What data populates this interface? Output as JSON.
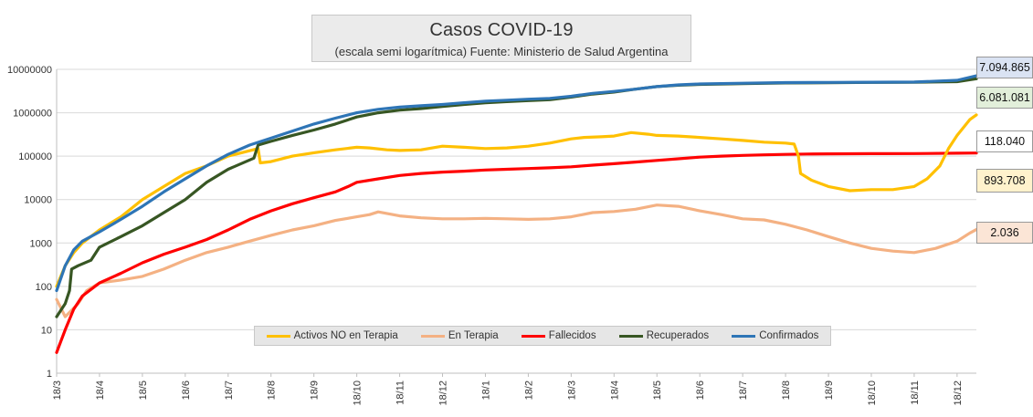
{
  "chart_data": {
    "type": "line",
    "title": "Casos COVID-19",
    "subtitle": "(escala semi logarítmica) Fuente: Ministerio de Salud Argentina",
    "y_scale": "log",
    "ylim": [
      1,
      10000000
    ],
    "y_ticks": [
      {
        "value": 1,
        "label": "1"
      },
      {
        "value": 10,
        "label": "10"
      },
      {
        "value": 100,
        "label": "100"
      },
      {
        "value": 1000,
        "label": "1000"
      },
      {
        "value": 10000,
        "label": "10000"
      },
      {
        "value": 100000,
        "label": "100000"
      },
      {
        "value": 1000000,
        "label": "1000000"
      },
      {
        "value": 10000000,
        "label": "10000000"
      }
    ],
    "x_ticks": [
      "18/3",
      "18/4",
      "18/5",
      "18/6",
      "18/7",
      "18/8",
      "18/9",
      "18/10",
      "18/11",
      "18/12",
      "18/1",
      "18/2",
      "18/3",
      "18/4",
      "18/5",
      "18/6",
      "18/7",
      "18/8",
      "18/9",
      "18/10",
      "18/11",
      "18/12"
    ],
    "x_tick_rotation": "vertical",
    "grid": "horizontal",
    "legend_position": "bottom-center",
    "series": [
      {
        "name": "Activos NO en Terapia",
        "color": "#ffc000",
        "last_value_label": "893.708",
        "label_bg": "#fff2cc",
        "points": [
          [
            0,
            100
          ],
          [
            0.2,
            300
          ],
          [
            0.4,
            600
          ],
          [
            0.6,
            1000
          ],
          [
            1,
            2000
          ],
          [
            1.5,
            4000
          ],
          [
            2,
            10000
          ],
          [
            2.5,
            20000
          ],
          [
            3,
            40000
          ],
          [
            3.5,
            60000
          ],
          [
            4,
            100000
          ],
          [
            4.7,
            150000
          ],
          [
            4.75,
            70000
          ],
          [
            5,
            75000
          ],
          [
            5.5,
            100000
          ],
          [
            6,
            120000
          ],
          [
            6.5,
            140000
          ],
          [
            7,
            160000
          ],
          [
            7.3,
            155000
          ],
          [
            7.7,
            140000
          ],
          [
            8,
            135000
          ],
          [
            8.5,
            140000
          ],
          [
            9,
            170000
          ],
          [
            9.5,
            160000
          ],
          [
            10,
            150000
          ],
          [
            10.5,
            155000
          ],
          [
            11,
            170000
          ],
          [
            11.5,
            200000
          ],
          [
            12,
            250000
          ],
          [
            12.3,
            270000
          ],
          [
            12.7,
            280000
          ],
          [
            13,
            290000
          ],
          [
            13.4,
            350000
          ],
          [
            13.8,
            320000
          ],
          [
            14,
            300000
          ],
          [
            14.5,
            290000
          ],
          [
            15,
            270000
          ],
          [
            15.5,
            250000
          ],
          [
            16,
            230000
          ],
          [
            16.5,
            210000
          ],
          [
            17,
            200000
          ],
          [
            17.2,
            190000
          ],
          [
            17.3,
            100000
          ],
          [
            17.35,
            40000
          ],
          [
            17.6,
            28000
          ],
          [
            18,
            20000
          ],
          [
            18.5,
            16000
          ],
          [
            19,
            17000
          ],
          [
            19.5,
            17000
          ],
          [
            20,
            20000
          ],
          [
            20.3,
            30000
          ],
          [
            20.6,
            60000
          ],
          [
            20.8,
            150000
          ],
          [
            21,
            300000
          ],
          [
            21.3,
            700000
          ],
          [
            21.45,
            893708
          ]
        ]
      },
      {
        "name": "En Terapia",
        "color": "#f4b183",
        "last_value_label": "2.036",
        "label_bg": "#fbe5d6",
        "points": [
          [
            0,
            50
          ],
          [
            0.2,
            20
          ],
          [
            0.5,
            40
          ],
          [
            0.7,
            80
          ],
          [
            1,
            120
          ],
          [
            1.5,
            140
          ],
          [
            2,
            170
          ],
          [
            2.5,
            250
          ],
          [
            3,
            400
          ],
          [
            3.5,
            600
          ],
          [
            4,
            800
          ],
          [
            4.5,
            1100
          ],
          [
            5,
            1500
          ],
          [
            5.5,
            2000
          ],
          [
            6,
            2500
          ],
          [
            6.5,
            3300
          ],
          [
            7,
            4000
          ],
          [
            7.3,
            4500
          ],
          [
            7.5,
            5200
          ],
          [
            8,
            4200
          ],
          [
            8.5,
            3800
          ],
          [
            9,
            3600
          ],
          [
            9.5,
            3600
          ],
          [
            10,
            3700
          ],
          [
            10.5,
            3600
          ],
          [
            11,
            3500
          ],
          [
            11.5,
            3600
          ],
          [
            12,
            4000
          ],
          [
            12.5,
            5000
          ],
          [
            13,
            5300
          ],
          [
            13.5,
            6000
          ],
          [
            14,
            7500
          ],
          [
            14.5,
            7000
          ],
          [
            15,
            5500
          ],
          [
            15.5,
            4500
          ],
          [
            16,
            3600
          ],
          [
            16.5,
            3400
          ],
          [
            17,
            2700
          ],
          [
            17.5,
            2000
          ],
          [
            18,
            1400
          ],
          [
            18.5,
            1000
          ],
          [
            19,
            750
          ],
          [
            19.5,
            650
          ],
          [
            20,
            600
          ],
          [
            20.5,
            750
          ],
          [
            21,
            1100
          ],
          [
            21.3,
            1700
          ],
          [
            21.45,
            2036
          ]
        ]
      },
      {
        "name": "Fallecidos",
        "color": "#ff0000",
        "last_value_label": "118.040",
        "label_bg": "#ffffff",
        "points": [
          [
            0,
            3
          ],
          [
            0.2,
            10
          ],
          [
            0.4,
            30
          ],
          [
            0.6,
            60
          ],
          [
            1,
            120
          ],
          [
            1.5,
            200
          ],
          [
            2,
            350
          ],
          [
            2.5,
            550
          ],
          [
            3,
            800
          ],
          [
            3.5,
            1200
          ],
          [
            4,
            2000
          ],
          [
            4.5,
            3500
          ],
          [
            5,
            5500
          ],
          [
            5.5,
            8000
          ],
          [
            6,
            11000
          ],
          [
            6.5,
            15000
          ],
          [
            6.8,
            20000
          ],
          [
            7,
            25000
          ],
          [
            7.5,
            30000
          ],
          [
            8,
            36000
          ],
          [
            8.5,
            40000
          ],
          [
            9,
            43000
          ],
          [
            9.5,
            45000
          ],
          [
            10,
            48000
          ],
          [
            10.5,
            50000
          ],
          [
            11,
            52000
          ],
          [
            11.5,
            54000
          ],
          [
            12,
            57000
          ],
          [
            12.5,
            62000
          ],
          [
            13,
            67000
          ],
          [
            13.5,
            73000
          ],
          [
            14,
            80000
          ],
          [
            14.5,
            87000
          ],
          [
            15,
            95000
          ],
          [
            15.5,
            100000
          ],
          [
            16,
            104000
          ],
          [
            16.5,
            107000
          ],
          [
            17,
            110000
          ],
          [
            17.5,
            112000
          ],
          [
            18,
            113000
          ],
          [
            19,
            114000
          ],
          [
            20,
            115000
          ],
          [
            21,
            117000
          ],
          [
            21.45,
            118040
          ]
        ]
      },
      {
        "name": "Recuperados",
        "color": "#375623",
        "last_value_label": "6.081.081",
        "label_bg": "#e2efda",
        "points": [
          [
            0,
            20
          ],
          [
            0.2,
            40
          ],
          [
            0.3,
            80
          ],
          [
            0.35,
            250
          ],
          [
            0.5,
            300
          ],
          [
            0.8,
            400
          ],
          [
            1,
            800
          ],
          [
            1.5,
            1400
          ],
          [
            2,
            2500
          ],
          [
            2.5,
            5000
          ],
          [
            3,
            10000
          ],
          [
            3.5,
            25000
          ],
          [
            4,
            50000
          ],
          [
            4.6,
            90000
          ],
          [
            4.7,
            180000
          ],
          [
            5,
            220000
          ],
          [
            5.5,
            300000
          ],
          [
            6,
            400000
          ],
          [
            6.5,
            550000
          ],
          [
            7,
            800000
          ],
          [
            7.5,
            1000000
          ],
          [
            8,
            1150000
          ],
          [
            8.5,
            1250000
          ],
          [
            9,
            1400000
          ],
          [
            9.5,
            1550000
          ],
          [
            10,
            1700000
          ],
          [
            10.5,
            1800000
          ],
          [
            11,
            1900000
          ],
          [
            11.5,
            2000000
          ],
          [
            12,
            2300000
          ],
          [
            12.5,
            2700000
          ],
          [
            13,
            3000000
          ],
          [
            13.5,
            3500000
          ],
          [
            14,
            4000000
          ],
          [
            14.5,
            4300000
          ],
          [
            15,
            4500000
          ],
          [
            16,
            4700000
          ],
          [
            17,
            4850000
          ],
          [
            18,
            4900000
          ],
          [
            19,
            5000000
          ],
          [
            20,
            5050000
          ],
          [
            21,
            5200000
          ],
          [
            21.45,
            6081081
          ]
        ]
      },
      {
        "name": "Confirmados",
        "color": "#2e75b6",
        "last_value_label": "7.094.865",
        "label_bg": "#dae3f3",
        "points": [
          [
            0,
            80
          ],
          [
            0.2,
            300
          ],
          [
            0.4,
            700
          ],
          [
            0.6,
            1100
          ],
          [
            1,
            1800
          ],
          [
            1.5,
            3500
          ],
          [
            2,
            7000
          ],
          [
            2.5,
            15000
          ],
          [
            3,
            30000
          ],
          [
            3.5,
            60000
          ],
          [
            4,
            110000
          ],
          [
            4.5,
            180000
          ],
          [
            5,
            260000
          ],
          [
            5.5,
            380000
          ],
          [
            6,
            550000
          ],
          [
            6.5,
            750000
          ],
          [
            7,
            1000000
          ],
          [
            7.5,
            1200000
          ],
          [
            8,
            1350000
          ],
          [
            8.5,
            1450000
          ],
          [
            9,
            1550000
          ],
          [
            9.5,
            1700000
          ],
          [
            10,
            1850000
          ],
          [
            10.5,
            1950000
          ],
          [
            11,
            2050000
          ],
          [
            11.5,
            2150000
          ],
          [
            12,
            2400000
          ],
          [
            12.5,
            2800000
          ],
          [
            13,
            3100000
          ],
          [
            13.5,
            3500000
          ],
          [
            14,
            4000000
          ],
          [
            14.5,
            4400000
          ],
          [
            15,
            4600000
          ],
          [
            16,
            4800000
          ],
          [
            17,
            4950000
          ],
          [
            18,
            5000000
          ],
          [
            19,
            5050000
          ],
          [
            20,
            5100000
          ],
          [
            21,
            5600000
          ],
          [
            21.45,
            7094865
          ]
        ]
      }
    ]
  }
}
